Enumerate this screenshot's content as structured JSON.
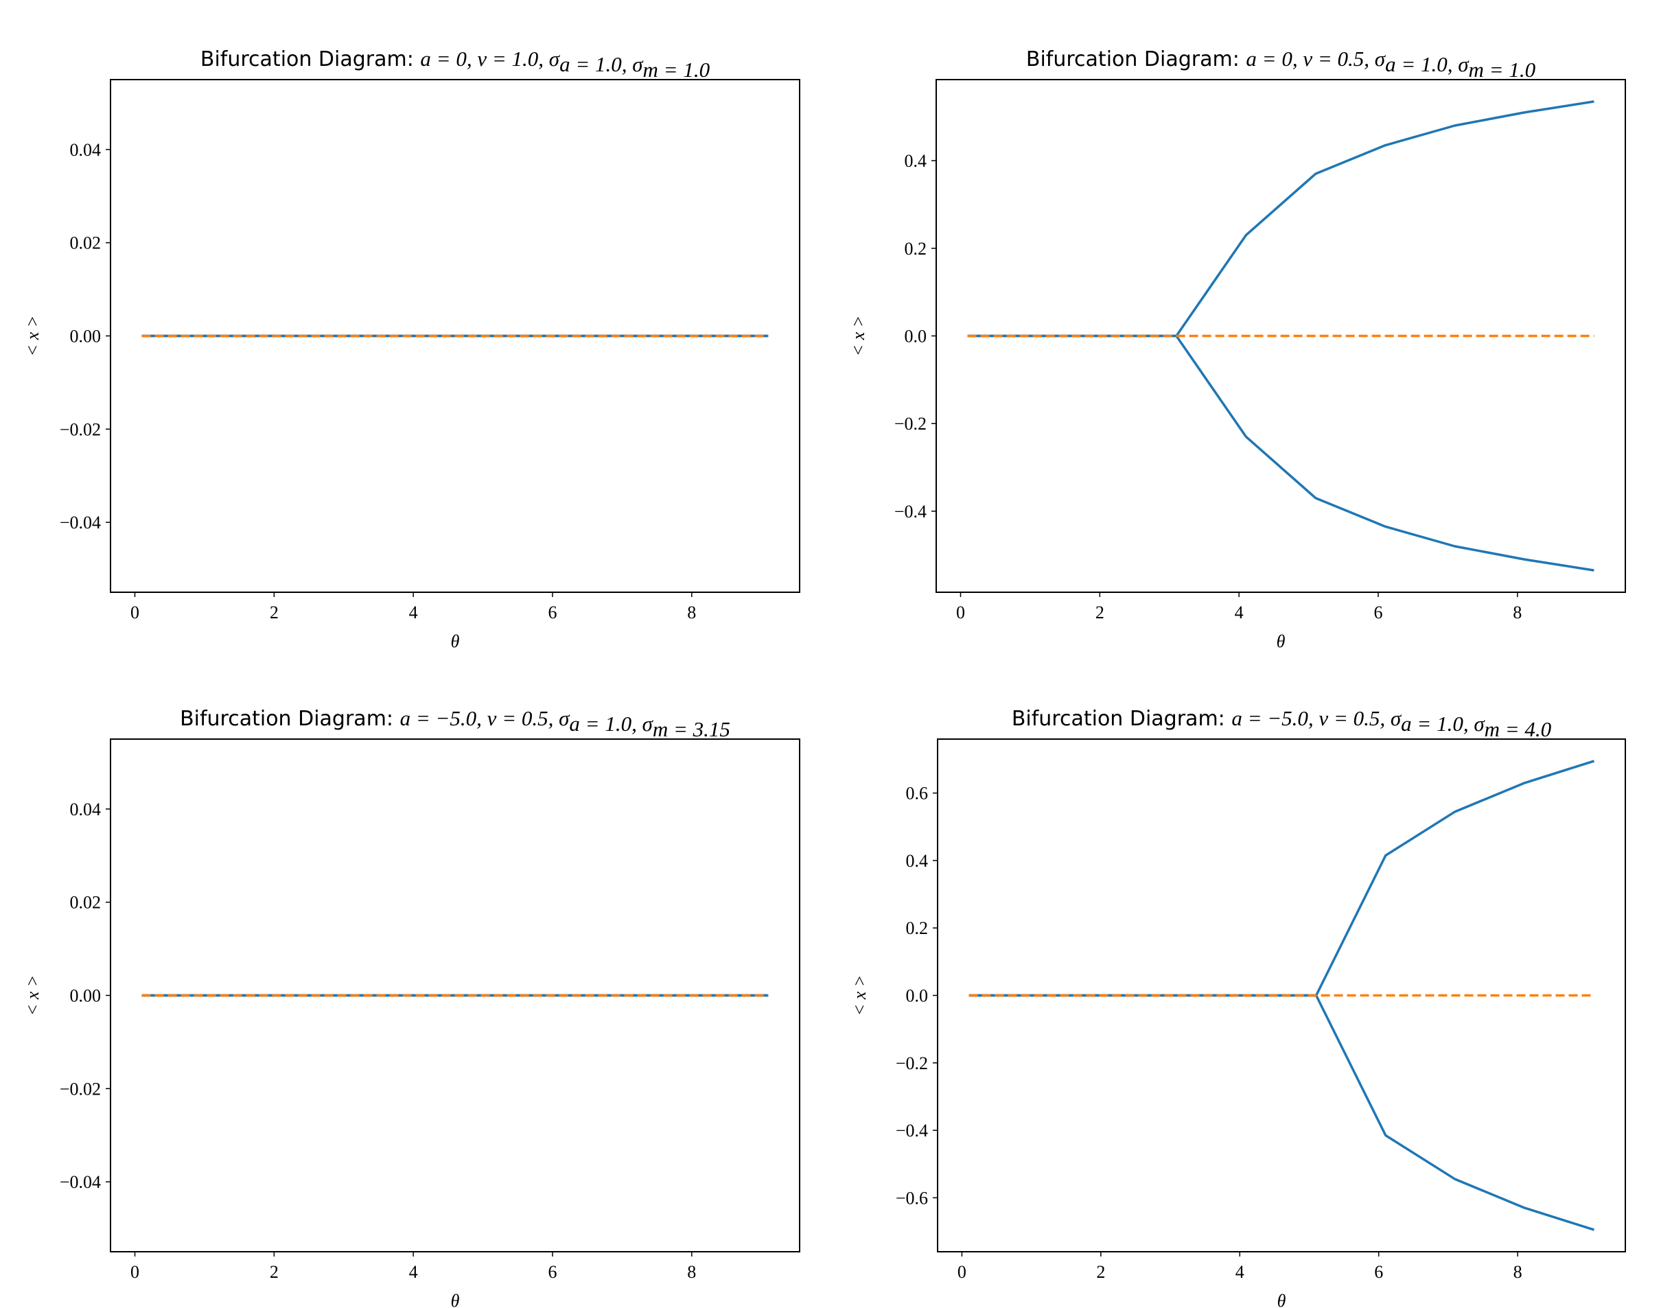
{
  "chart_data": [
    {
      "type": "line",
      "title_text": "Bifurcation Diagram:",
      "title_math": "a = 0, ν = 1.0, σ",
      "title_math_parts": [
        {
          "t": "a",
          "sub": ""
        },
        {
          "t": " = 0, ",
          "sub": ""
        },
        {
          "t": "ν",
          "sub": ""
        },
        {
          "t": " = 1.0, ",
          "sub": ""
        },
        {
          "t": "σ",
          "sub": "a"
        },
        {
          "t": " = 1.0, ",
          "sub": ""
        },
        {
          "t": "σ",
          "sub": "m"
        },
        {
          "t": " = 1.0",
          "sub": ""
        }
      ],
      "xlabel": "θ",
      "ylabel": "< x >",
      "xlim": [
        -0.35,
        9.55
      ],
      "ylim": [
        -0.055,
        0.055
      ],
      "xticks": [
        0,
        2,
        4,
        6,
        8
      ],
      "xtick_labels": [
        "0",
        "2",
        "4",
        "6",
        "8"
      ],
      "yticks": [
        0.04,
        0.02,
        0.0,
        -0.02,
        -0.04
      ],
      "ytick_labels": [
        "0.04",
        "0.02",
        "0.00",
        "−0.02",
        "−0.04"
      ],
      "series": [
        {
          "color": "#1f77b4",
          "style": "solid",
          "points": [
            [
              0.1,
              0.0
            ],
            [
              9.1,
              0.0
            ]
          ]
        },
        {
          "color": "#1f77b4",
          "style": "solid",
          "points": [
            [
              0.1,
              0.0
            ],
            [
              9.1,
              0.0
            ]
          ]
        },
        {
          "color": "#ff7f0e",
          "style": "dashed",
          "points": [
            [
              0.1,
              0.0
            ],
            [
              9.1,
              0.0
            ]
          ]
        }
      ]
    },
    {
      "type": "line",
      "title_text": "Bifurcation Diagram:",
      "title_math_parts": [
        {
          "t": "a",
          "sub": ""
        },
        {
          "t": " = 0, ",
          "sub": ""
        },
        {
          "t": "ν",
          "sub": ""
        },
        {
          "t": " = 0.5, ",
          "sub": ""
        },
        {
          "t": "σ",
          "sub": "a"
        },
        {
          "t": " = 1.0, ",
          "sub": ""
        },
        {
          "t": "σ",
          "sub": "m"
        },
        {
          "t": " = 1.0",
          "sub": ""
        }
      ],
      "xlabel": "θ",
      "ylabel": "< x >",
      "xlim": [
        -0.35,
        9.55
      ],
      "ylim": [
        -0.585,
        0.585
      ],
      "xticks": [
        0,
        2,
        4,
        6,
        8
      ],
      "xtick_labels": [
        "0",
        "2",
        "4",
        "6",
        "8"
      ],
      "yticks": [
        0.4,
        0.2,
        0.0,
        -0.2,
        -0.4
      ],
      "ytick_labels": [
        "0.4",
        "0.2",
        "0.0",
        "−0.2",
        "−0.4"
      ],
      "series": [
        {
          "color": "#1f77b4",
          "style": "solid",
          "points": [
            [
              0.1,
              0.0
            ],
            [
              1.1,
              0.0
            ],
            [
              2.1,
              0.0
            ],
            [
              3.1,
              0.0
            ],
            [
              4.1,
              0.23
            ],
            [
              5.1,
              0.37
            ],
            [
              6.1,
              0.435
            ],
            [
              7.1,
              0.48
            ],
            [
              8.1,
              0.51
            ],
            [
              9.1,
              0.535
            ]
          ]
        },
        {
          "color": "#1f77b4",
          "style": "solid",
          "points": [
            [
              0.1,
              0.0
            ],
            [
              1.1,
              0.0
            ],
            [
              2.1,
              0.0
            ],
            [
              3.1,
              0.0
            ],
            [
              4.1,
              -0.23
            ],
            [
              5.1,
              -0.37
            ],
            [
              6.1,
              -0.435
            ],
            [
              7.1,
              -0.48
            ],
            [
              8.1,
              -0.51
            ],
            [
              9.1,
              -0.535
            ]
          ]
        },
        {
          "color": "#ff7f0e",
          "style": "dashed",
          "points": [
            [
              0.1,
              0.0
            ],
            [
              9.1,
              0.0
            ]
          ]
        }
      ]
    },
    {
      "type": "line",
      "title_text": "Bifurcation Diagram:",
      "title_math_parts": [
        {
          "t": "a",
          "sub": ""
        },
        {
          "t": " = −5.0, ",
          "sub": ""
        },
        {
          "t": "ν",
          "sub": ""
        },
        {
          "t": " = 0.5, ",
          "sub": ""
        },
        {
          "t": "σ",
          "sub": "a"
        },
        {
          "t": " = 1.0, ",
          "sub": ""
        },
        {
          "t": "σ",
          "sub": "m"
        },
        {
          "t": " = 3.15",
          "sub": ""
        }
      ],
      "xlabel": "θ",
      "ylabel": "< x >",
      "xlim": [
        -0.35,
        9.55
      ],
      "ylim": [
        -0.055,
        0.055
      ],
      "xticks": [
        0,
        2,
        4,
        6,
        8
      ],
      "xtick_labels": [
        "0",
        "2",
        "4",
        "6",
        "8"
      ],
      "yticks": [
        0.04,
        0.02,
        0.0,
        -0.02,
        -0.04
      ],
      "ytick_labels": [
        "0.04",
        "0.02",
        "0.00",
        "−0.02",
        "−0.04"
      ],
      "series": [
        {
          "color": "#1f77b4",
          "style": "solid",
          "points": [
            [
              0.1,
              0.0
            ],
            [
              9.1,
              0.0
            ]
          ]
        },
        {
          "color": "#1f77b4",
          "style": "solid",
          "points": [
            [
              0.1,
              0.0
            ],
            [
              9.1,
              0.0
            ]
          ]
        },
        {
          "color": "#ff7f0e",
          "style": "dashed",
          "points": [
            [
              0.1,
              0.0
            ],
            [
              9.1,
              0.0
            ]
          ]
        }
      ]
    },
    {
      "type": "line",
      "title_text": "Bifurcation Diagram:",
      "title_math_parts": [
        {
          "t": "a",
          "sub": ""
        },
        {
          "t": " = −5.0, ",
          "sub": ""
        },
        {
          "t": "ν",
          "sub": ""
        },
        {
          "t": " = 0.5, ",
          "sub": ""
        },
        {
          "t": "σ",
          "sub": "a"
        },
        {
          "t": " = 1.0, ",
          "sub": ""
        },
        {
          "t": "σ",
          "sub": "m"
        },
        {
          "t": " = 4.0",
          "sub": ""
        }
      ],
      "xlabel": "θ",
      "ylabel": "< x >",
      "xlim": [
        -0.35,
        9.55
      ],
      "ylim": [
        -0.76,
        0.76
      ],
      "xticks": [
        0,
        2,
        4,
        6,
        8
      ],
      "xtick_labels": [
        "0",
        "2",
        "4",
        "6",
        "8"
      ],
      "yticks": [
        0.6,
        0.4,
        0.2,
        0.0,
        -0.2,
        -0.4,
        -0.6
      ],
      "ytick_labels": [
        "0.6",
        "0.4",
        "0.2",
        "0.0",
        "−0.2",
        "−0.4",
        "−0.6"
      ],
      "series": [
        {
          "color": "#1f77b4",
          "style": "solid",
          "points": [
            [
              0.1,
              0.0
            ],
            [
              1.1,
              0.0
            ],
            [
              2.1,
              0.0
            ],
            [
              3.1,
              0.0
            ],
            [
              4.1,
              0.0
            ],
            [
              5.1,
              0.0
            ],
            [
              6.1,
              0.415
            ],
            [
              7.1,
              0.545
            ],
            [
              8.1,
              0.63
            ],
            [
              9.1,
              0.695
            ]
          ]
        },
        {
          "color": "#1f77b4",
          "style": "solid",
          "points": [
            [
              0.1,
              0.0
            ],
            [
              1.1,
              0.0
            ],
            [
              2.1,
              0.0
            ],
            [
              3.1,
              0.0
            ],
            [
              4.1,
              0.0
            ],
            [
              5.1,
              0.0
            ],
            [
              6.1,
              -0.415
            ],
            [
              7.1,
              -0.545
            ],
            [
              8.1,
              -0.63
            ],
            [
              9.1,
              -0.695
            ]
          ]
        },
        {
          "color": "#ff7f0e",
          "style": "dashed",
          "points": [
            [
              0.1,
              0.0
            ],
            [
              9.1,
              0.0
            ]
          ]
        }
      ]
    }
  ]
}
